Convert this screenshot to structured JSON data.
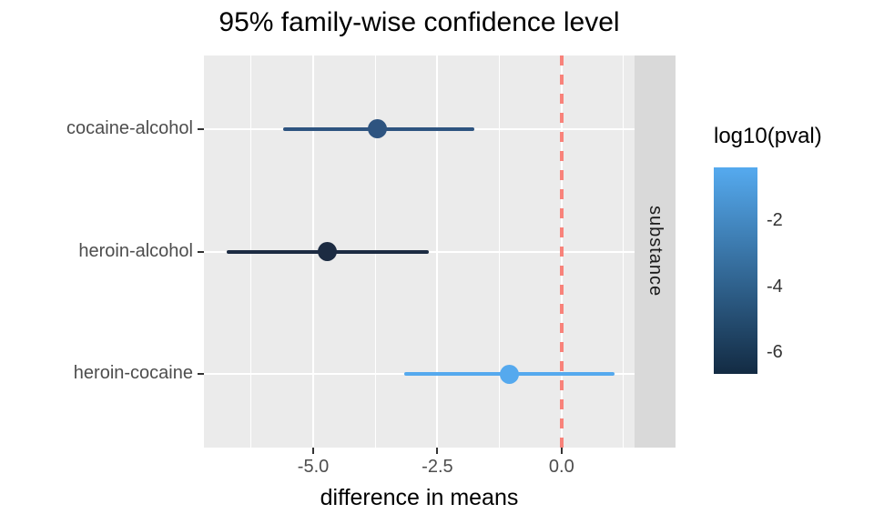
{
  "chart_data": {
    "type": "errorbar",
    "title": "95% family-wise confidence level",
    "xlabel": "difference in means",
    "xlim": [
      -7.2,
      1.47
    ],
    "x_major_ticks": [
      {
        "value": -5.0,
        "label": "-5.0"
      },
      {
        "value": -2.5,
        "label": "-2.5"
      },
      {
        "value": 0.0,
        "label": "0.0"
      }
    ],
    "x_minor_ticks": [
      -6.25,
      -3.75,
      -1.25,
      1.25
    ],
    "categories": [
      "cocaine-alcohol",
      "heroin-alcohol",
      "heroin-cocaine"
    ],
    "rows": [
      {
        "comparison": "cocaine-alcohol",
        "lower": -5.6,
        "center": -3.7,
        "upper": -1.76,
        "log10_pval": -4.3,
        "color": "#2E5480"
      },
      {
        "comparison": "heroin-alcohol",
        "lower": -6.75,
        "center": -4.72,
        "upper": -2.68,
        "log10_pval": -6.6,
        "color": "#1C2B42"
      },
      {
        "comparison": "heroin-cocaine",
        "lower": -3.16,
        "center": -1.05,
        "upper": 1.06,
        "log10_pval": -0.4,
        "color": "#55A9EE"
      }
    ],
    "reference_line": {
      "x": 0.0,
      "color": "#F8827A",
      "style": "dashed"
    },
    "facet_strip": {
      "label": "substance",
      "bg": "#D9D9D9"
    },
    "legend": {
      "title": "log10(pval)",
      "ticks": [
        {
          "value": -2,
          "label": "-2"
        },
        {
          "value": -4,
          "label": "-4"
        },
        {
          "value": -6,
          "label": "-6"
        }
      ],
      "domain": [
        -0.37,
        -6.63
      ],
      "color_high": "#55AAEF",
      "color_low": "#132B43"
    },
    "panel_bg": "#EBEBEB",
    "grid_color": "#FFFFFF",
    "legend_position": "right",
    "grid": "on"
  }
}
